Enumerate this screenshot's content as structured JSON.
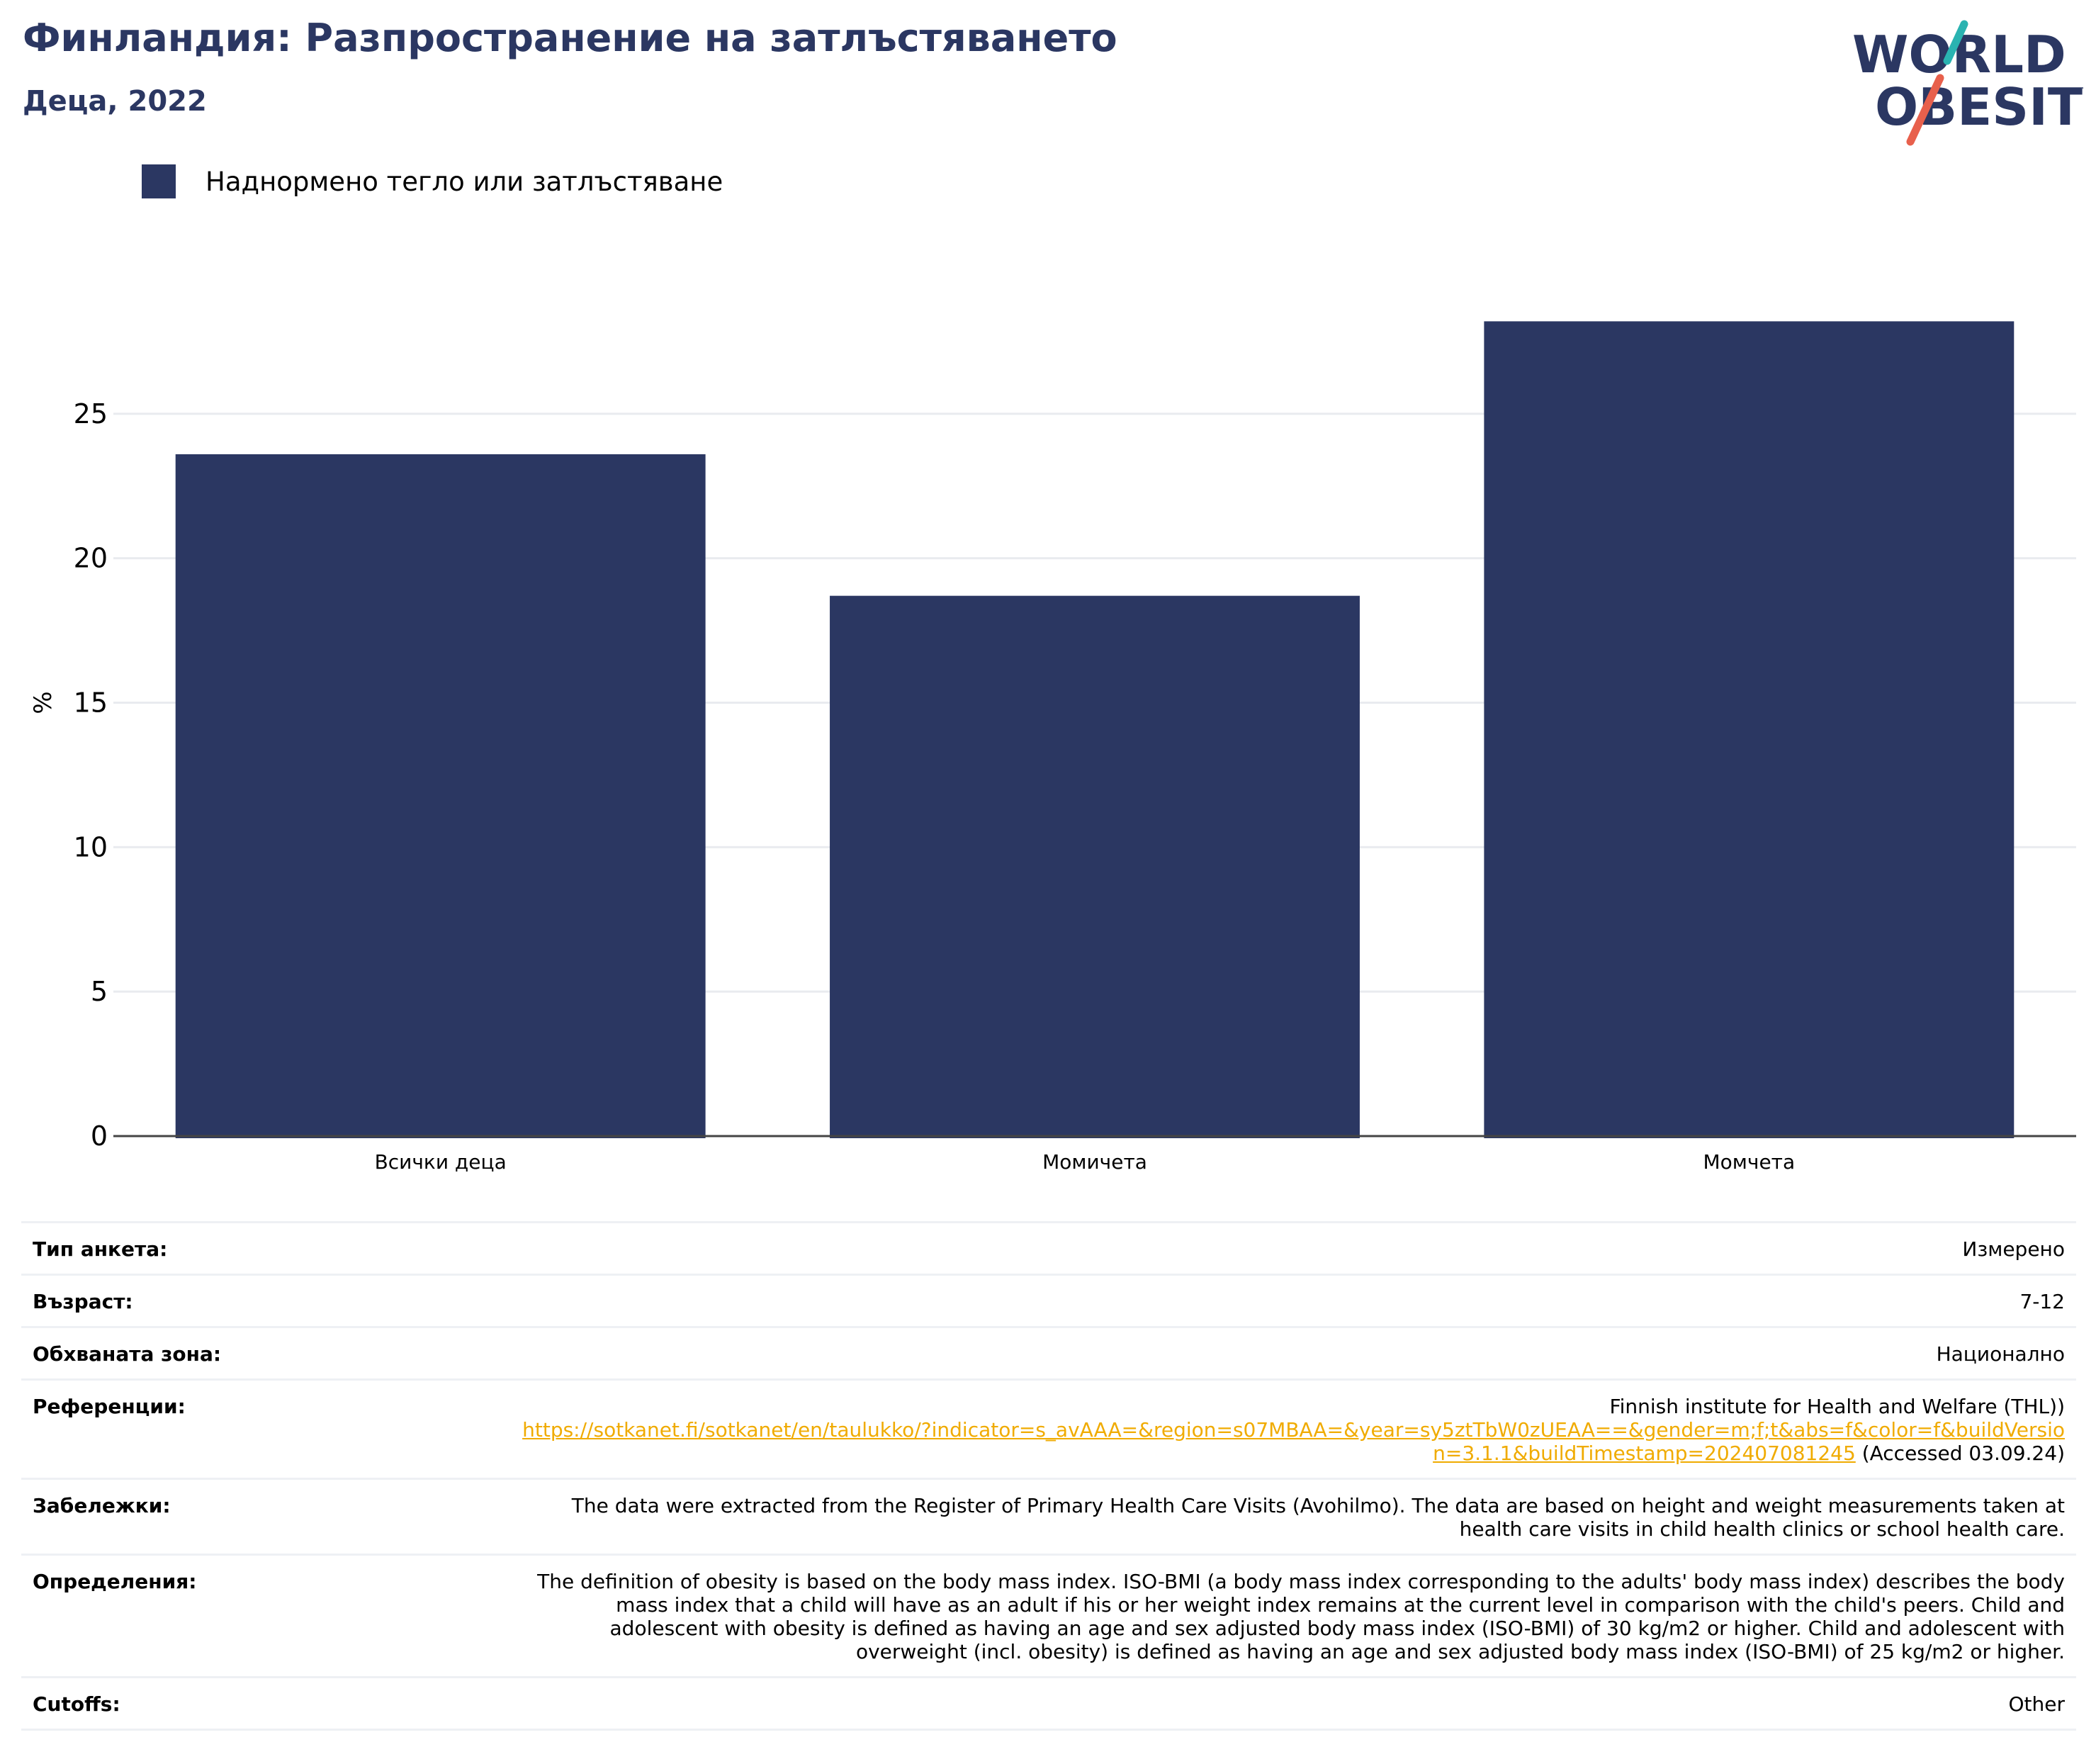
{
  "title": "Финландия: Разпространение на затлъстяването",
  "subtitle": "Деца, 2022",
  "logo": {
    "line1": "WORLD",
    "line2": "OBESITY",
    "accent_colors": [
      "#2ab3b1",
      "#e8604c"
    ]
  },
  "colors": {
    "brand": "#2b3762",
    "bar": "#2b3762",
    "link": "#f0ab00",
    "grid": "#e9ebef"
  },
  "chart_data": {
    "type": "bar",
    "categories": [
      "Всички деца",
      "Момичета",
      "Момчета"
    ],
    "series": [
      {
        "name": "Наднормено тегло или затлъстяване",
        "values": [
          23.6,
          18.7,
          28.2
        ]
      }
    ],
    "ylabel": "%",
    "xlabel": "",
    "ylim": [
      0,
      30
    ],
    "yticks": [
      0,
      5,
      10,
      15,
      20,
      25
    ],
    "grid": true,
    "legend_position": "top-left"
  },
  "meta": {
    "survey_type": {
      "label": "Тип анкета:",
      "value": "Измерено"
    },
    "age": {
      "label": "Възраст:",
      "value": "7-12"
    },
    "area": {
      "label": "Обхваната зона:",
      "value": "Национално"
    },
    "references": {
      "label": "Референции:",
      "source": "Finnish institute for Health and Welfare (THL))",
      "link": "https://sotkanet.fi/sotkanet/en/taulukko/?indicator=s_avAAA=&region=s07MBAA=&year=sy5ztTbW0zUEAA==&gender=m;f;t&abs=f&color=f&buildVersion=3.1.1&buildTimestamp=202407081245",
      "accessed": " (Accessed 03.09.24)"
    },
    "notes": {
      "label": "Забележки:",
      "value": "The data were extracted from the Register of Primary Health Care Visits (Avohilmo). The data are based on height and weight measurements taken at health care visits in child health clinics or school health care."
    },
    "definitions": {
      "label": "Определения:",
      "value": "The definition of obesity is based on the body mass index. ISO-BMI (a body mass index corresponding to the adults' body mass index) describes the body mass index that a child will have as an adult if his or her weight index remains at the current level in comparison with the child's peers. Child and adolescent with obesity is defined as having an age and sex adjusted body mass index (ISO-BMI) of 30 kg/m2 or higher. Child and adolescent with overweight (incl. obesity) is defined as having an age and sex adjusted body mass index (ISO-BMI) of 25 kg/m2 or higher."
    },
    "cutoffs": {
      "label": "Cutoffs:",
      "value": "Other"
    }
  }
}
